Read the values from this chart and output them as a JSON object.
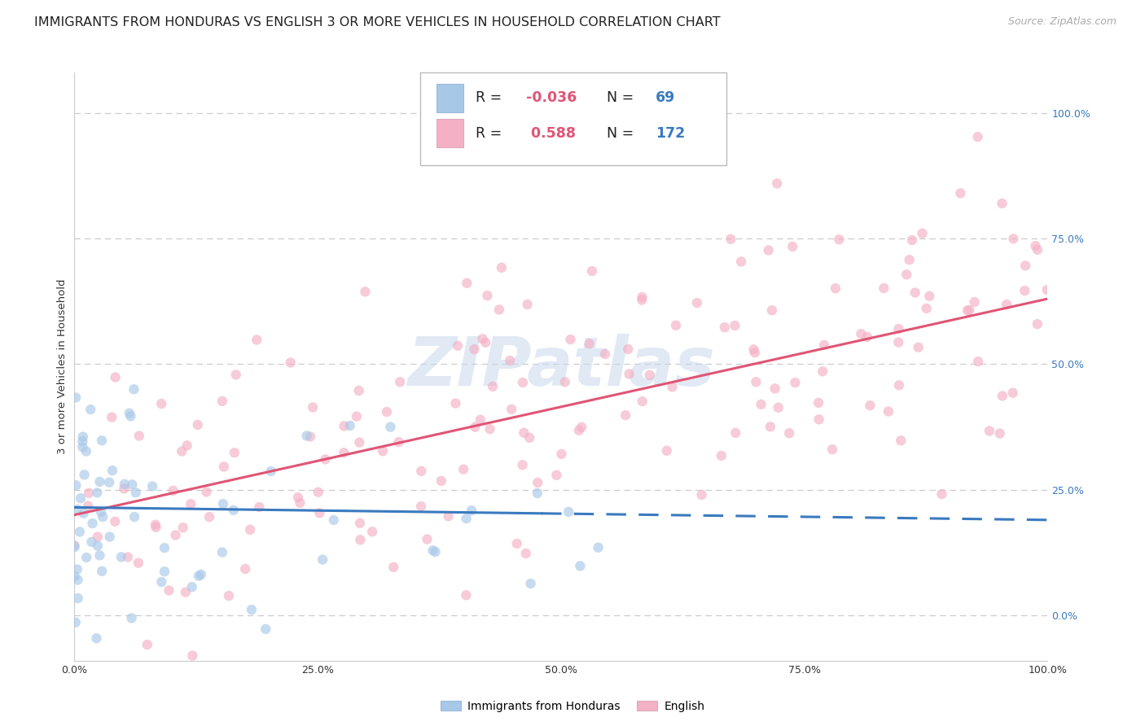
{
  "title": "IMMIGRANTS FROM HONDURAS VS ENGLISH 3 OR MORE VEHICLES IN HOUSEHOLD CORRELATION CHART",
  "source": "Source: ZipAtlas.com",
  "ylabel": "3 or more Vehicles in Household",
  "xlim": [
    0.0,
    1.0
  ],
  "ylim": [
    -0.09,
    1.08
  ],
  "ytick_positions": [
    0.0,
    0.25,
    0.5,
    0.75,
    1.0
  ],
  "ytick_labels": [
    "0.0%",
    "25.0%",
    "50.0%",
    "75.0%",
    "100.0%"
  ],
  "xtick_positions": [
    0.0,
    0.25,
    0.5,
    0.75,
    1.0
  ],
  "xtick_labels": [
    "0.0%",
    "25.0%",
    "50.0%",
    "75.0%",
    "100.0%"
  ],
  "bg_color": "#ffffff",
  "watermark_text": "ZIPatlas",
  "blue_scatter_color": "#a8c8e8",
  "pink_scatter_color": "#f4b0c4",
  "blue_line_color": "#3a7abf",
  "pink_line_color": "#e05575",
  "grid_color": "#cccccc",
  "title_fontsize": 11.5,
  "axis_label_fontsize": 9.5,
  "tick_fontsize": 9,
  "source_fontsize": 9,
  "scatter_alpha": 0.65,
  "scatter_size": 80,
  "blue_R": -0.036,
  "blue_N": 69,
  "pink_R": 0.588,
  "pink_N": 172,
  "legend_R_color": "#e05575",
  "legend_N_color": "#3a7abf",
  "legend_text_color": "#222222",
  "ytick_color": "#3a7abf",
  "bottom_legend_labels": [
    "Immigrants from Honduras",
    "English"
  ],
  "bottom_legend_colors": [
    "#a8c8e8",
    "#f4b0c4"
  ],
  "blue_line_intercept": 0.215,
  "blue_line_slope": -0.025,
  "pink_line_intercept": 0.2,
  "pink_line_slope": 0.43
}
